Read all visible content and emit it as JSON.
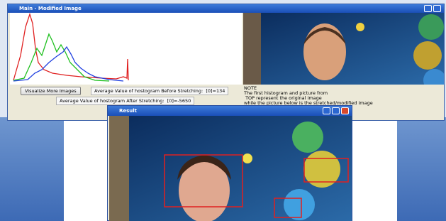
{
  "main_window": {
    "title": "Main - Modified Image",
    "button": "Visualize More Images",
    "before_label": "Average Value of hostogram Before Stretching:  [0]=134",
    "after_label": "Average Value of hostogram After Stretching:  [0]=-5650",
    "note": [
      "NOTE",
      "The first histogram and picture from",
      " TOP represent the original image",
      "while the picture below is the stretched/modified image"
    ]
  },
  "result_window": {
    "title": "Result"
  }
}
